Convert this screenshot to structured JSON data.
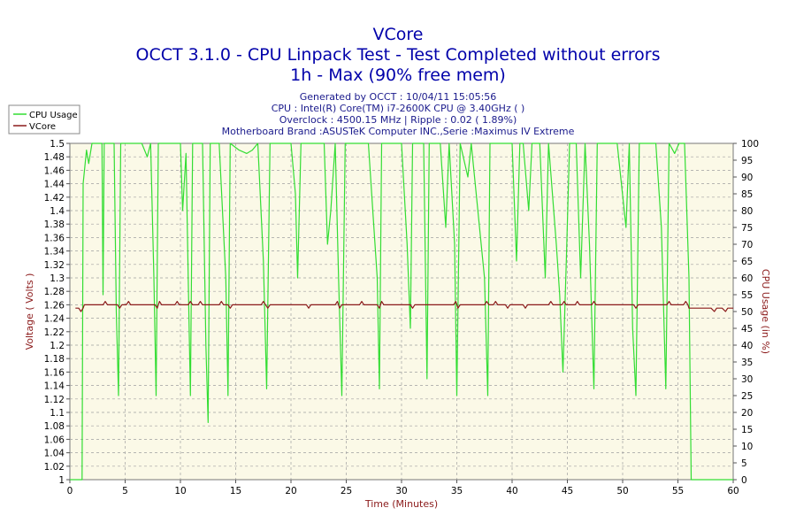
{
  "chart_data": {
    "type": "line",
    "title_lines": [
      "VCore",
      "OCCT 3.1.0 - CPU Linpack Test - Test Completed without errors",
      "1h - Max (90% free mem)"
    ],
    "info_lines": [
      "Generated by OCCT : 10/04/11 15:05:56",
      "CPU : Intel(R) Core(TM) i7-2600K CPU @ 3.40GHz (  )",
      "Overclock : 4500.15 MHz | Ripple : 0.02 ( 1.89%)",
      "Motherboard Brand :ASUSTeK Computer INC.,Serie :Maximus IV Extreme"
    ],
    "xlabel": "Time (Minutes)",
    "ylabel_left": "Voltage ( Volts )",
    "ylabel_right": "CPU Usage (in %)",
    "xlim": [
      0,
      60
    ],
    "ylim_left": [
      1,
      1.5
    ],
    "ylim_right": [
      0,
      100
    ],
    "x_ticks": [
      0,
      5,
      10,
      15,
      20,
      25,
      30,
      35,
      40,
      45,
      50,
      55,
      60
    ],
    "y_left_ticks": [
      "1",
      "1.02",
      "1.04",
      "1.06",
      "1.08",
      "1.1",
      "1.12",
      "1.14",
      "1.16",
      "1.18",
      "1.2",
      "1.22",
      "1.24",
      "1.26",
      "1.28",
      "1.3",
      "1.32",
      "1.34",
      "1.36",
      "1.38",
      "1.4",
      "1.42",
      "1.44",
      "1.46",
      "1.48",
      "1.5"
    ],
    "y_right_ticks": [
      "0",
      "5",
      "10",
      "15",
      "20",
      "25",
      "30",
      "35",
      "40",
      "45",
      "50",
      "55",
      "60",
      "65",
      "70",
      "75",
      "80",
      "85",
      "90",
      "95",
      "100"
    ],
    "grid": true,
    "legend_position": "top-left",
    "series": [
      {
        "name": "CPU Usage",
        "axis": "right",
        "color": "#33dd33",
        "points": [
          [
            0.0,
            0
          ],
          [
            1.1,
            0
          ],
          [
            1.2,
            88
          ],
          [
            1.5,
            98
          ],
          [
            1.7,
            94
          ],
          [
            2.0,
            100
          ],
          [
            2.9,
            100
          ],
          [
            3.0,
            55
          ],
          [
            3.1,
            100
          ],
          [
            4.0,
            100
          ],
          [
            4.2,
            50
          ],
          [
            4.4,
            25
          ],
          [
            4.6,
            100
          ],
          [
            5.5,
            100
          ],
          [
            6.5,
            100
          ],
          [
            7.0,
            96
          ],
          [
            7.3,
            100
          ],
          [
            7.6,
            60
          ],
          [
            7.8,
            25
          ],
          [
            8.0,
            100
          ],
          [
            9.0,
            100
          ],
          [
            10.0,
            100
          ],
          [
            10.2,
            80
          ],
          [
            10.5,
            97
          ],
          [
            10.7,
            60
          ],
          [
            10.9,
            25
          ],
          [
            11.1,
            100
          ],
          [
            12.0,
            100
          ],
          [
            12.3,
            40
          ],
          [
            12.5,
            17
          ],
          [
            12.7,
            100
          ],
          [
            13.5,
            100
          ],
          [
            14.1,
            60
          ],
          [
            14.3,
            25
          ],
          [
            14.5,
            100
          ],
          [
            15.3,
            98
          ],
          [
            16.0,
            97
          ],
          [
            16.5,
            98
          ],
          [
            17.0,
            100
          ],
          [
            17.5,
            65
          ],
          [
            17.8,
            27
          ],
          [
            18.1,
            100
          ],
          [
            19.0,
            100
          ],
          [
            20.0,
            100
          ],
          [
            20.4,
            85
          ],
          [
            20.6,
            60
          ],
          [
            20.9,
            100
          ],
          [
            22.0,
            100
          ],
          [
            23.0,
            100
          ],
          [
            23.3,
            70
          ],
          [
            23.6,
            80
          ],
          [
            24.0,
            100
          ],
          [
            24.3,
            60
          ],
          [
            24.6,
            25
          ],
          [
            24.9,
            100
          ],
          [
            25.5,
            100
          ],
          [
            26.0,
            100
          ],
          [
            27.0,
            100
          ],
          [
            27.8,
            60
          ],
          [
            28.0,
            27
          ],
          [
            28.2,
            100
          ],
          [
            29.0,
            100
          ],
          [
            30.0,
            100
          ],
          [
            30.5,
            70
          ],
          [
            30.8,
            45
          ],
          [
            31.0,
            100
          ],
          [
            32.0,
            100
          ],
          [
            32.3,
            30
          ],
          [
            32.5,
            100
          ],
          [
            33.5,
            100
          ],
          [
            34.0,
            75
          ],
          [
            34.3,
            100
          ],
          [
            34.8,
            70
          ],
          [
            35.0,
            25
          ],
          [
            35.3,
            100
          ],
          [
            36.0,
            90
          ],
          [
            36.3,
            100
          ],
          [
            37.5,
            60
          ],
          [
            37.8,
            25
          ],
          [
            38.0,
            100
          ],
          [
            39.0,
            100
          ],
          [
            40.0,
            100
          ],
          [
            40.4,
            65
          ],
          [
            40.7,
            100
          ],
          [
            41.0,
            100
          ],
          [
            41.5,
            80
          ],
          [
            41.8,
            100
          ],
          [
            42.5,
            100
          ],
          [
            43.0,
            60
          ],
          [
            43.3,
            100
          ],
          [
            44.0,
            70
          ],
          [
            44.3,
            55
          ],
          [
            44.6,
            32
          ],
          [
            44.9,
            65
          ],
          [
            45.2,
            100
          ],
          [
            45.8,
            100
          ],
          [
            46.2,
            60
          ],
          [
            46.6,
            100
          ],
          [
            47.0,
            70
          ],
          [
            47.4,
            27
          ],
          [
            47.7,
            100
          ],
          [
            48.5,
            100
          ],
          [
            49.5,
            100
          ],
          [
            50.3,
            75
          ],
          [
            50.6,
            100
          ],
          [
            50.9,
            45
          ],
          [
            51.2,
            25
          ],
          [
            51.5,
            100
          ],
          [
            52.5,
            100
          ],
          [
            53.0,
            100
          ],
          [
            53.5,
            75
          ],
          [
            53.9,
            27
          ],
          [
            54.2,
            100
          ],
          [
            54.7,
            97
          ],
          [
            55.1,
            100
          ],
          [
            55.6,
            100
          ],
          [
            56.0,
            60
          ],
          [
            56.2,
            0
          ],
          [
            60.0,
            0
          ]
        ]
      },
      {
        "name": "VCore",
        "axis": "left",
        "color": "#8b1a1a",
        "points": [
          [
            0.5,
            1.255
          ],
          [
            0.8,
            1.255
          ],
          [
            1.0,
            1.25
          ],
          [
            1.2,
            1.255
          ],
          [
            1.3,
            1.26
          ],
          [
            2.5,
            1.26
          ],
          [
            3.0,
            1.26
          ],
          [
            3.2,
            1.265
          ],
          [
            3.4,
            1.26
          ],
          [
            4.3,
            1.26
          ],
          [
            4.5,
            1.255
          ],
          [
            4.7,
            1.26
          ],
          [
            5.1,
            1.26
          ],
          [
            5.3,
            1.265
          ],
          [
            5.5,
            1.26
          ],
          [
            7.7,
            1.26
          ],
          [
            7.9,
            1.255
          ],
          [
            8.1,
            1.265
          ],
          [
            8.3,
            1.26
          ],
          [
            9.5,
            1.26
          ],
          [
            9.7,
            1.265
          ],
          [
            9.9,
            1.26
          ],
          [
            10.7,
            1.26
          ],
          [
            10.9,
            1.265
          ],
          [
            11.1,
            1.26
          ],
          [
            11.6,
            1.26
          ],
          [
            11.8,
            1.265
          ],
          [
            12.0,
            1.26
          ],
          [
            13.5,
            1.26
          ],
          [
            13.7,
            1.265
          ],
          [
            13.9,
            1.26
          ],
          [
            14.3,
            1.26
          ],
          [
            14.5,
            1.255
          ],
          [
            14.7,
            1.26
          ],
          [
            17.3,
            1.26
          ],
          [
            17.5,
            1.265
          ],
          [
            17.7,
            1.26
          ],
          [
            17.9,
            1.255
          ],
          [
            18.1,
            1.26
          ],
          [
            21.4,
            1.26
          ],
          [
            21.6,
            1.255
          ],
          [
            21.8,
            1.26
          ],
          [
            24.0,
            1.26
          ],
          [
            24.2,
            1.265
          ],
          [
            24.4,
            1.255
          ],
          [
            24.6,
            1.26
          ],
          [
            26.2,
            1.26
          ],
          [
            26.4,
            1.265
          ],
          [
            26.6,
            1.26
          ],
          [
            27.8,
            1.26
          ],
          [
            28.0,
            1.255
          ],
          [
            28.2,
            1.265
          ],
          [
            28.4,
            1.26
          ],
          [
            30.8,
            1.26
          ],
          [
            31.0,
            1.255
          ],
          [
            31.2,
            1.26
          ],
          [
            34.7,
            1.26
          ],
          [
            34.9,
            1.265
          ],
          [
            35.1,
            1.255
          ],
          [
            35.3,
            1.26
          ],
          [
            37.5,
            1.26
          ],
          [
            37.7,
            1.265
          ],
          [
            37.9,
            1.26
          ],
          [
            38.3,
            1.26
          ],
          [
            38.5,
            1.265
          ],
          [
            38.7,
            1.26
          ],
          [
            39.4,
            1.26
          ],
          [
            39.6,
            1.255
          ],
          [
            39.8,
            1.26
          ],
          [
            41.0,
            1.26
          ],
          [
            41.2,
            1.255
          ],
          [
            41.4,
            1.26
          ],
          [
            43.3,
            1.26
          ],
          [
            43.5,
            1.265
          ],
          [
            43.7,
            1.26
          ],
          [
            44.5,
            1.26
          ],
          [
            44.7,
            1.265
          ],
          [
            44.9,
            1.26
          ],
          [
            45.7,
            1.26
          ],
          [
            45.9,
            1.265
          ],
          [
            46.1,
            1.26
          ],
          [
            47.2,
            1.26
          ],
          [
            47.4,
            1.265
          ],
          [
            47.6,
            1.26
          ],
          [
            51.0,
            1.26
          ],
          [
            51.2,
            1.255
          ],
          [
            51.4,
            1.26
          ],
          [
            54.0,
            1.26
          ],
          [
            54.2,
            1.265
          ],
          [
            54.4,
            1.26
          ],
          [
            55.5,
            1.26
          ],
          [
            55.7,
            1.265
          ],
          [
            55.9,
            1.26
          ],
          [
            56.0,
            1.255
          ],
          [
            58.0,
            1.255
          ],
          [
            58.3,
            1.25
          ],
          [
            58.5,
            1.255
          ],
          [
            59.0,
            1.255
          ],
          [
            59.3,
            1.25
          ],
          [
            59.5,
            1.255
          ],
          [
            60.0,
            1.255
          ]
        ]
      }
    ]
  },
  "colors": {
    "title": "#0000aa",
    "info": "#1a1a8c",
    "axis_label": "#8b1a1a",
    "plot_background": "#fbf9e7",
    "grid": "#a0a0a0"
  }
}
